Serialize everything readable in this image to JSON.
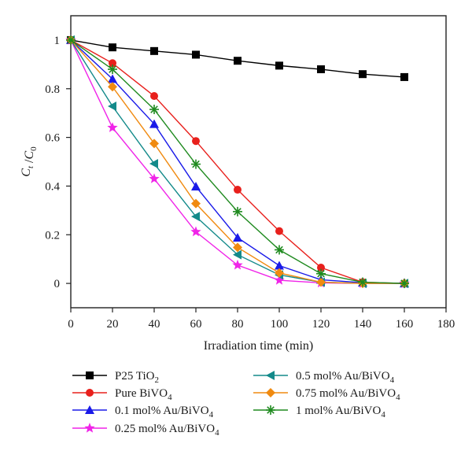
{
  "chart_data": {
    "type": "line",
    "xlabel": "Irradiation time (min)",
    "ylabel": {
      "main": "C",
      "sub1": "t",
      "sep": " /",
      "main2": "C",
      "sub2": "0"
    },
    "xlim": [
      0,
      180
    ],
    "ylim": [
      -0.1,
      1.1
    ],
    "x_ticks": [
      0,
      20,
      40,
      60,
      80,
      100,
      120,
      140,
      160,
      180
    ],
    "y_ticks": [
      0,
      0.2,
      0.4,
      0.6,
      0.8,
      1
    ],
    "x_tick_labels": [
      "0",
      "20",
      "40",
      "60",
      "80",
      "100",
      "120",
      "140",
      "160",
      "180"
    ],
    "y_tick_labels": [
      "0",
      "0.2",
      "0.4",
      "0.6",
      "0.8",
      "1"
    ],
    "grid": false,
    "legend_position": "below",
    "x": [
      0,
      20,
      40,
      60,
      80,
      100,
      120,
      140,
      160
    ],
    "series": [
      {
        "name": "P25 TiO",
        "name_sub": "2",
        "color": "#000000",
        "marker": "square",
        "values": [
          1.0,
          0.97,
          0.955,
          0.94,
          0.915,
          0.895,
          0.88,
          0.86,
          0.848
        ]
      },
      {
        "name": "Pure BiVO",
        "name_sub": "4",
        "color": "#e8201c",
        "marker": "circle",
        "values": [
          1.0,
          0.905,
          0.77,
          0.585,
          0.385,
          0.215,
          0.065,
          0.005,
          0.0
        ]
      },
      {
        "name": "0.1 mol% Au/BiVO",
        "name_sub": "4",
        "color": "#1a1ae8",
        "marker": "triangle-up",
        "values": [
          1.0,
          0.84,
          0.655,
          0.398,
          0.188,
          0.073,
          0.015,
          0.003,
          0.0
        ]
      },
      {
        "name": "0.25 mol% Au/BiVO",
        "name_sub": "4",
        "color": "#f024e8",
        "marker": "star",
        "values": [
          1.0,
          0.64,
          0.43,
          0.212,
          0.075,
          0.013,
          0.002,
          0.0,
          0.0
        ]
      },
      {
        "name": "0.5 mol% Au/BiVO",
        "name_sub": "4",
        "color": "#138a8a",
        "marker": "triangle-left",
        "values": [
          1.0,
          0.728,
          0.492,
          0.275,
          0.118,
          0.035,
          0.005,
          0.0,
          0.0
        ]
      },
      {
        "name": "0.75 mol% Au/BiVO",
        "name_sub": "4",
        "color": "#f08a10",
        "marker": "diamond",
        "values": [
          1.0,
          0.808,
          0.575,
          0.328,
          0.148,
          0.043,
          0.005,
          0.0,
          0.0
        ]
      },
      {
        "name": "1 mol% Au/BiVO",
        "name_sub": "4",
        "color": "#1f8a1f",
        "marker": "asterisk",
        "values": [
          1.0,
          0.88,
          0.715,
          0.49,
          0.295,
          0.138,
          0.04,
          0.005,
          0.0
        ]
      }
    ]
  }
}
